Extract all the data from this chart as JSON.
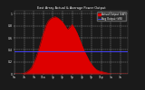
{
  "title": "East Array Actual & Average Power Output",
  "title_color": "#ffffff",
  "bg_color": "#1a1a1a",
  "plot_bg_color": "#1a1a1a",
  "fill_color": "#dd0000",
  "line_color": "#dd0000",
  "avg_line_color": "#4444ff",
  "avg_line_value": 0.38,
  "ylim": [
    0,
    1.05
  ],
  "xlim": [
    0,
    47
  ],
  "grid_color": "#ffffff",
  "legend_actual": "Actual Output (kW)",
  "legend_avg": "Avg Output (kW)",
  "data_y": [
    0,
    0,
    0,
    0,
    0.01,
    0.03,
    0.06,
    0.1,
    0.18,
    0.28,
    0.4,
    0.54,
    0.68,
    0.8,
    0.88,
    0.92,
    0.94,
    0.95,
    0.93,
    0.9,
    0.86,
    0.8,
    0.74,
    0.78,
    0.82,
    0.76,
    0.68,
    0.58,
    0.48,
    0.38,
    0.3,
    0.22,
    0.16,
    0.11,
    0.07,
    0.05,
    0.04,
    0.03,
    0.02,
    0.01,
    0,
    0,
    0,
    0,
    0,
    0,
    0,
    0
  ],
  "x_tick_positions": [
    0,
    4,
    8,
    12,
    16,
    20,
    24,
    28,
    32,
    36,
    40,
    44
  ],
  "x_tick_labels": [
    "5a",
    "7a",
    "9a",
    "11a",
    "1p",
    "3p",
    "5p",
    "7p",
    "9p",
    "11p",
    "1a",
    "3a"
  ],
  "y_tick_positions": [
    0.0,
    0.2,
    0.4,
    0.6,
    0.8,
    1.0
  ],
  "y_tick_labels": [
    "0",
    "0.2",
    "0.4",
    "0.6",
    "0.8",
    "1"
  ]
}
